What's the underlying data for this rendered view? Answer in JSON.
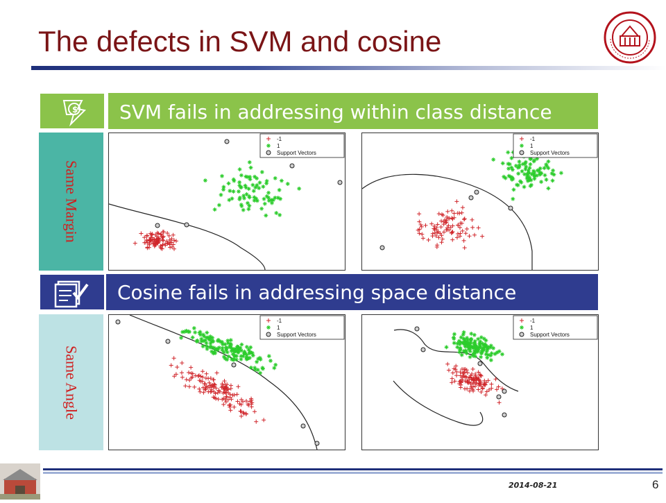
{
  "slide": {
    "title": "The defects in SVM and cosine",
    "date": "2014-08-21",
    "page_number": "6"
  },
  "banners": [
    {
      "text": "SVM fails in addressing  within class distance",
      "color": "#8bc34a",
      "icon": "svm-dollar-star-icon"
    },
    {
      "text": "Cosine fails in addressing space distance",
      "color": "#2f3c8f",
      "icon": "checklist-icon"
    }
  ],
  "side_labels": [
    {
      "text": "Same Margin",
      "bg": "#4bb5a5"
    },
    {
      "text": "Same Angle",
      "bg": "#bde2e4"
    }
  ],
  "plot_legend": {
    "class_neg": "-1",
    "class_pos": "1",
    "support_vectors": "Support Vectors"
  },
  "colors": {
    "title": "#7a1416",
    "class_neg": "#d0262b",
    "class_pos": "#2ccc2c",
    "side_text": "#d01f1f"
  }
}
